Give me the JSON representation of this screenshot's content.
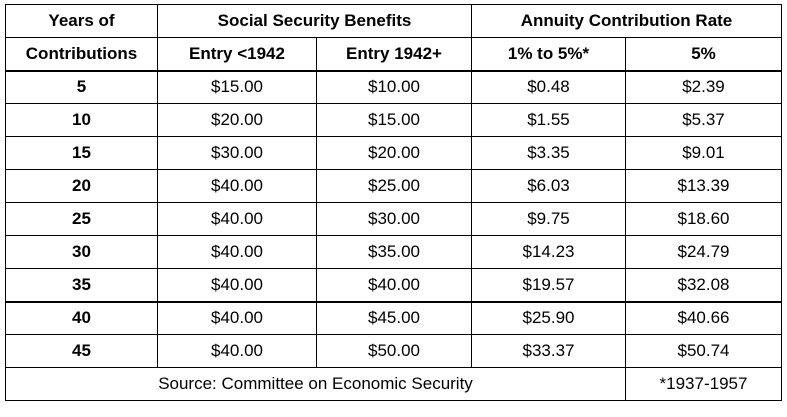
{
  "headers": {
    "years_line1": "Years of",
    "years_line2": "Contributions",
    "ss_group": "Social Security Benefits",
    "annuity_group": "Annuity Contribution Rate",
    "ss_col1": "Entry <1942",
    "ss_col2": "Entry 1942+",
    "an_col1": "1% to 5%*",
    "an_col2": "5%"
  },
  "rows": [
    {
      "years": "5",
      "ss1": "$15.00",
      "ss2": "$10.00",
      "an1": "$0.48",
      "an2": "$2.39"
    },
    {
      "years": "10",
      "ss1": "$20.00",
      "ss2": "$15.00",
      "an1": "$1.55",
      "an2": "$5.37"
    },
    {
      "years": "15",
      "ss1": "$30.00",
      "ss2": "$20.00",
      "an1": "$3.35",
      "an2": "$9.01"
    },
    {
      "years": "20",
      "ss1": "$40.00",
      "ss2": "$25.00",
      "an1": "$6.03",
      "an2": "$13.39"
    },
    {
      "years": "25",
      "ss1": "$40.00",
      "ss2": "$30.00",
      "an1": "$9.75",
      "an2": "$18.60"
    },
    {
      "years": "30",
      "ss1": "$40.00",
      "ss2": "$35.00",
      "an1": "$14.23",
      "an2": "$24.79"
    },
    {
      "years": "35",
      "ss1": "$40.00",
      "ss2": "$40.00",
      "an1": "$19.57",
      "an2": "$32.08"
    },
    {
      "years": "40",
      "ss1": "$40.00",
      "ss2": "$45.00",
      "an1": "$25.90",
      "an2": "$40.66"
    },
    {
      "years": "45",
      "ss1": "$40.00",
      "ss2": "$50.00",
      "an1": "$33.37",
      "an2": "$50.74"
    }
  ],
  "footer": {
    "source": "Source: Committee on Economic Security",
    "note": "*1937-1957"
  }
}
